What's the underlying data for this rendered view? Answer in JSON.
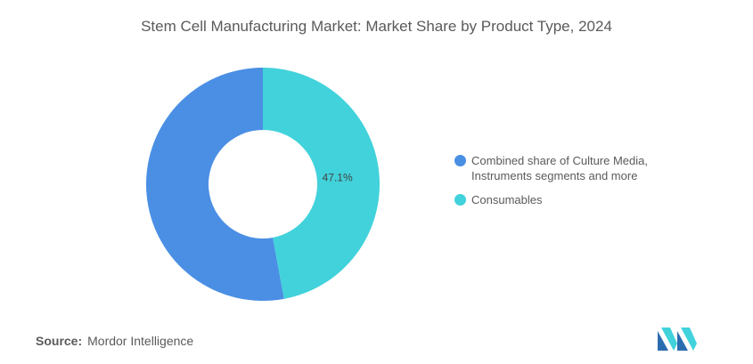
{
  "title": "Stem Cell Manufacturing Market: Market Share by Product Type, 2024",
  "source": {
    "label": "Source:",
    "text": "Mordor Intelligence"
  },
  "chart_data": {
    "type": "pie",
    "donut": true,
    "title": "Stem Cell Manufacturing Market: Market Share by Product Type, 2024",
    "slices": [
      {
        "name": "Consumables",
        "value": 47.1,
        "color": "#41d2db",
        "label": "47.1%"
      },
      {
        "name": "Combined share of Culture Media, Instruments segments and more",
        "value": 52.9,
        "color": "#4a8fe4",
        "label": ""
      }
    ],
    "legend": {
      "placement": "right",
      "items": [
        {
          "name_lines": [
            "Combined share of Culture Media,",
            "Instruments segments and more"
          ],
          "color": "#4a8fe4"
        },
        {
          "name_lines": [
            "Consumables"
          ],
          "color": "#41d2db"
        }
      ]
    }
  },
  "logo": {
    "colors": [
      "#2b6cb0",
      "#41d2db"
    ]
  }
}
